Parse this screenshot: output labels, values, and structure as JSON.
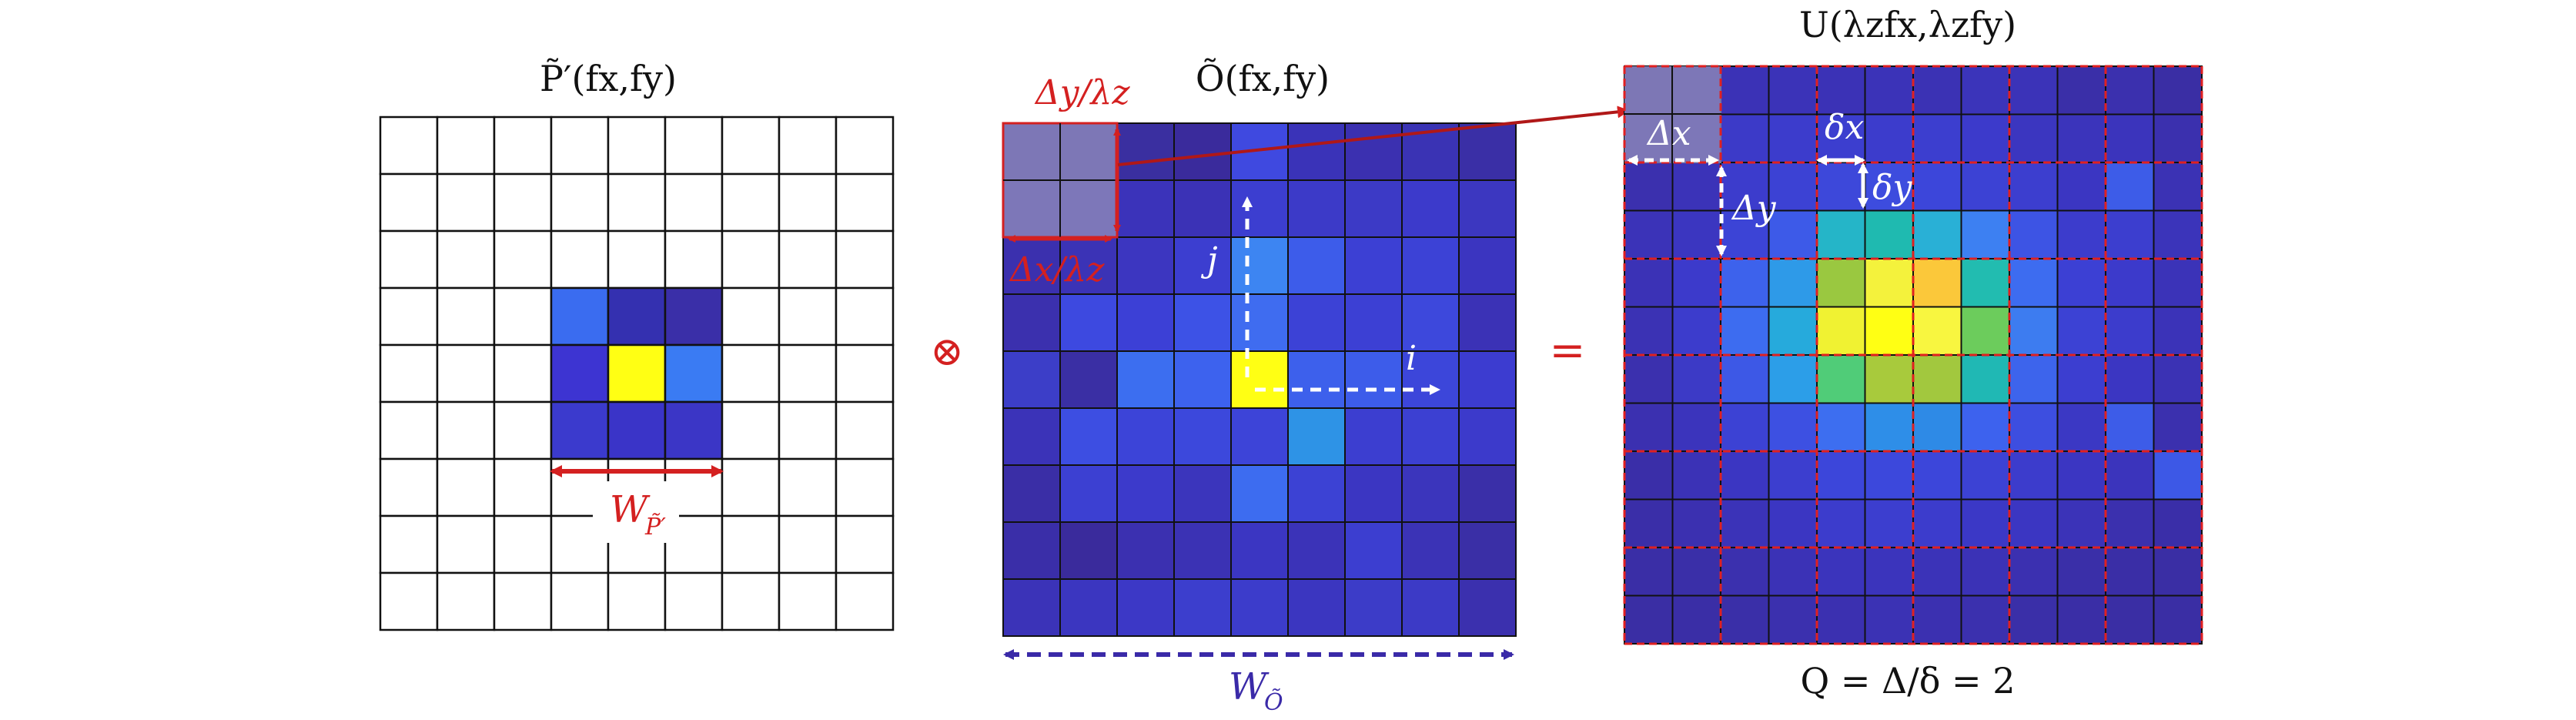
{
  "panel_p": {
    "title": "P̃′(fx,fy)",
    "width_label": "W",
    "width_sub": "P̃′"
  },
  "operator_convolve": "⊗",
  "panel_o": {
    "title": "Õ(fx,fy)",
    "delta_y_label": "Δy/λz",
    "delta_x_label": "Δx/λz",
    "j_label": "j",
    "i_label": "i",
    "width_label": "W",
    "width_sub": "Õ"
  },
  "operator_equals": "=",
  "panel_u": {
    "title": "U(λzfx,λzfy)",
    "delta_x_label": "Δx",
    "delta_y_label": "Δy",
    "small_delta_x_label": "δx",
    "small_delta_y_label": "δy",
    "q_label": "Q = Δ/δ = 2"
  },
  "colors": {
    "grid_line": "#111111",
    "accent_red": "#d42020",
    "accent_purple": "#3a2aa8",
    "overlay": "#8a84b8"
  },
  "grids": {
    "p_kernel": [
      [
        "#3a6cf0",
        "#3430b0",
        "#3a2fa8"
      ],
      [
        "#3d34d2",
        "#ffff14",
        "#3a7bf3"
      ],
      [
        "#3b3acd",
        "#3a34c8",
        "#3b36c6"
      ]
    ],
    "o_grid": [
      [
        "#3b2ea8",
        "#3b2fa6",
        "#3a2fa0",
        "#3a2b9c",
        "#3f49e0",
        "#3a33b8",
        "#3b30b0",
        "#3a33b4",
        "#3a2fa6"
      ],
      [
        "#3b30b2",
        "#3b33b8",
        "#3b33ba",
        "#3b32b6",
        "#3c3ed0",
        "#3c3ac8",
        "#3c3ac6",
        "#3c3acb",
        "#3c37c0"
      ],
      [
        "#3b30ae",
        "#3b33b6",
        "#3c36c0",
        "#3c3ed0",
        "#3d85f2",
        "#3d5cea",
        "#3c40d4",
        "#3c42d6",
        "#3b35c0"
      ],
      [
        "#3b30ae",
        "#3d49e0",
        "#3c40d6",
        "#3d52e6",
        "#3f6cf0",
        "#3c42d6",
        "#3c40d4",
        "#3d48dc",
        "#3b32b6"
      ],
      [
        "#3c3ec8",
        "#3a2fa4",
        "#3c6ef0",
        "#3d62ee",
        "#ffff14",
        "#3d60ec",
        "#3d5cea",
        "#3c46da",
        "#3c3cd0"
      ],
      [
        "#3b33b8",
        "#3d4ee2",
        "#3c44d8",
        "#3c48dc",
        "#3d44d8",
        "#2e93e6",
        "#3c3ed0",
        "#3c40d2",
        "#3c3acb"
      ],
      [
        "#3a2ea6",
        "#3c40d2",
        "#3c3acb",
        "#3b35bc",
        "#3d6cf0",
        "#3c42d4",
        "#3b36c2",
        "#3b35bc",
        "#3a2fa8"
      ],
      [
        "#3a2ea8",
        "#3a2b9c",
        "#3b30b0",
        "#3b32b4",
        "#3b36c2",
        "#3b33b8",
        "#3c3ed0",
        "#3b33b6",
        "#3a2fa6"
      ],
      [
        "#3b33b8",
        "#3b36c0",
        "#3c38c6",
        "#3c3ecd",
        "#3c3ccb",
        "#3b36c0",
        "#3c3cc8",
        "#3c3ac6",
        "#3b30ae"
      ]
    ],
    "u_grid": [
      [
        "#3a2ea4",
        "#3b30ae",
        "#3b32b6",
        "#3b33b8",
        "#3b32b6",
        "#3b33b8",
        "#3b32b4",
        "#3b34ba",
        "#3b33b8",
        "#3a2fa8",
        "#3b30ae",
        "#3a2ea4"
      ],
      [
        "#3b30b0",
        "#3b32b4",
        "#3c3ac8",
        "#3c3ccc",
        "#3c3ecf",
        "#3c3ccc",
        "#3c3ecf",
        "#3c3acb",
        "#3b36c0",
        "#3b34bb",
        "#3b34bc",
        "#3b30ae"
      ],
      [
        "#3b30ae",
        "#3b33b8",
        "#3c3ccc",
        "#3c42d4",
        "#3d48da",
        "#3d4cde",
        "#3c46da",
        "#3c42d4",
        "#3c3ecf",
        "#3b36c2",
        "#3d5ce8",
        "#3b32b4"
      ],
      [
        "#3b33b8",
        "#3b36c0",
        "#3c44d6",
        "#3d5ae8",
        "#25b5c8",
        "#1fbab0",
        "#29b0d6",
        "#3d80f2",
        "#3d54e4",
        "#3c3ccc",
        "#3c3ecf",
        "#3b34ba"
      ],
      [
        "#3b32b6",
        "#3c3acb",
        "#3d62ec",
        "#2e9ae8",
        "#9ac840",
        "#f4f23c",
        "#fbc83a",
        "#22bcb0",
        "#3d6cf0",
        "#3c40d4",
        "#3c3acb",
        "#3b33b8"
      ],
      [
        "#3b32b4",
        "#3c3ccc",
        "#3d6cf0",
        "#26aadc",
        "#f0f232",
        "#ffff14",
        "#f8f640",
        "#6ccc5c",
        "#3d7cf0",
        "#3c42d4",
        "#3c3ccc",
        "#3b33b8"
      ],
      [
        "#3b30ae",
        "#3c3ac6",
        "#3d58e6",
        "#2c9ee8",
        "#50cc78",
        "#a8ca3c",
        "#a2c83e",
        "#20b8b4",
        "#3d64ec",
        "#3c3ed0",
        "#3b36c2",
        "#3b32b4"
      ],
      [
        "#3b30b0",
        "#3b34bc",
        "#3c42d4",
        "#3d50e2",
        "#3d6ef0",
        "#2e8ee8",
        "#2e8ae6",
        "#3d62ee",
        "#3d4ee0",
        "#3b38c4",
        "#3d5ce8",
        "#3b30ae"
      ],
      [
        "#3a2ea8",
        "#3b32b6",
        "#3b36c2",
        "#3c3ecf",
        "#3c46da",
        "#3c48dc",
        "#3c46da",
        "#3c42d4",
        "#3c3ccc",
        "#3b36c2",
        "#3b34bc",
        "#3d58e6"
      ],
      [
        "#3a2ea8",
        "#3b30b0",
        "#3b33b8",
        "#3b36c2",
        "#3c3ccc",
        "#3c3ecf",
        "#3c3ccc",
        "#3b38c6",
        "#3b36c2",
        "#3b33b8",
        "#3b30ae",
        "#3a2ea8"
      ],
      [
        "#3a2ea6",
        "#3a2fa8",
        "#3b30ae",
        "#3b32b6",
        "#3b34bc",
        "#3b34bc",
        "#3b33b8",
        "#3b32b6",
        "#3b30b0",
        "#3a2fa8",
        "#3a2ea6",
        "#3a2ea4"
      ],
      [
        "#3a2ea4",
        "#3a2ea6",
        "#3a2fa8",
        "#3b30ae",
        "#3b30b0",
        "#3b32b4",
        "#3b30b0",
        "#3b30ae",
        "#3a2fa8",
        "#3a2ea6",
        "#3a2ea4",
        "#3a2ea4"
      ]
    ]
  }
}
